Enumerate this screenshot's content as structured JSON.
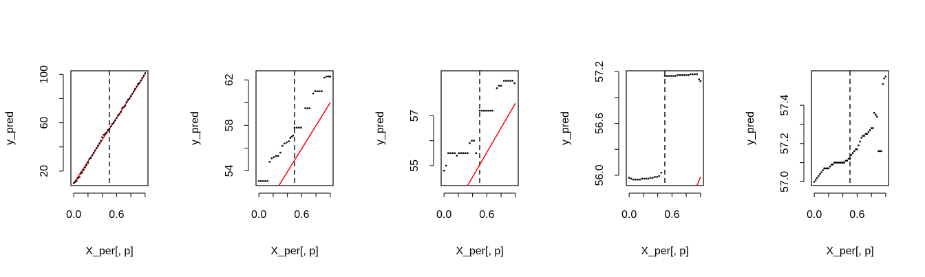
{
  "chart_data": [
    {
      "type": "scatter",
      "xlabel": "X_per[, p]",
      "ylabel": "y_pred",
      "xlim": [
        -0.04,
        1.04
      ],
      "ylim": [
        8,
        103
      ],
      "x_ticks": [
        "0.0",
        "0.6"
      ],
      "x_tick_values": [
        0.0,
        0.6
      ],
      "y_ticks": [
        "20",
        "60",
        "100"
      ],
      "y_tick_values": [
        20,
        60,
        100
      ],
      "vline": 0.5,
      "line": {
        "color": "#ff0000",
        "x": [
          0.0,
          1.0
        ],
        "y": [
          10,
          100
        ]
      },
      "points": [
        [
          0,
          10
        ],
        [
          0.02,
          11
        ],
        [
          0.04,
          12
        ],
        [
          0.06,
          14
        ],
        [
          0.08,
          15
        ],
        [
          0.1,
          18
        ],
        [
          0.12,
          19
        ],
        [
          0.14,
          21
        ],
        [
          0.16,
          23
        ],
        [
          0.18,
          25
        ],
        [
          0.2,
          27
        ],
        [
          0.22,
          30
        ],
        [
          0.24,
          31
        ],
        [
          0.26,
          33
        ],
        [
          0.28,
          35
        ],
        [
          0.3,
          37
        ],
        [
          0.32,
          39
        ],
        [
          0.34,
          41
        ],
        [
          0.36,
          43
        ],
        [
          0.38,
          45
        ],
        [
          0.4,
          48
        ],
        [
          0.42,
          50
        ],
        [
          0.44,
          51
        ],
        [
          0.46,
          52
        ],
        [
          0.48,
          54
        ],
        [
          0.5,
          55
        ],
        [
          0.52,
          57
        ],
        [
          0.54,
          59
        ],
        [
          0.56,
          60
        ],
        [
          0.58,
          62
        ],
        [
          0.6,
          64
        ],
        [
          0.62,
          66
        ],
        [
          0.64,
          67
        ],
        [
          0.66,
          69
        ],
        [
          0.68,
          72
        ],
        [
          0.7,
          73
        ],
        [
          0.72,
          74
        ],
        [
          0.74,
          77
        ],
        [
          0.76,
          79
        ],
        [
          0.78,
          80
        ],
        [
          0.8,
          82
        ],
        [
          0.82,
          84
        ],
        [
          0.84,
          86
        ],
        [
          0.86,
          88
        ],
        [
          0.88,
          90
        ],
        [
          0.9,
          92
        ],
        [
          0.92,
          93
        ],
        [
          0.94,
          95
        ],
        [
          0.96,
          97
        ],
        [
          0.98,
          99
        ],
        [
          1.0,
          101
        ]
      ]
    },
    {
      "type": "scatter",
      "xlabel": "X_per[, p]",
      "ylabel": "y_pred",
      "xlim": [
        -0.04,
        1.04
      ],
      "ylim": [
        52.7,
        62.8
      ],
      "x_ticks": [
        "0.0",
        "0.6"
      ],
      "x_tick_values": [
        0.0,
        0.6
      ],
      "y_ticks": [
        "54",
        "58",
        "62"
      ],
      "y_tick_values": [
        54,
        58,
        62
      ],
      "vline": 0.5,
      "line": {
        "color": "#ff0000",
        "x": [
          0.28,
          1.0
        ],
        "y": [
          52.7,
          60.0
        ]
      },
      "points": [
        [
          0,
          53.1
        ],
        [
          0.03,
          53.1
        ],
        [
          0.06,
          53.1
        ],
        [
          0.09,
          53.1
        ],
        [
          0.12,
          53.1
        ],
        [
          0.15,
          54.8
        ],
        [
          0.18,
          55.1
        ],
        [
          0.21,
          55.2
        ],
        [
          0.24,
          55.3
        ],
        [
          0.27,
          55.3
        ],
        [
          0.3,
          55.6
        ],
        [
          0.33,
          56.2
        ],
        [
          0.36,
          56.4
        ],
        [
          0.39,
          56.5
        ],
        [
          0.42,
          56.6
        ],
        [
          0.44,
          56.9
        ],
        [
          0.46,
          57.0
        ],
        [
          0.48,
          57.1
        ],
        [
          0.5,
          57.8
        ],
        [
          0.53,
          57.8
        ],
        [
          0.56,
          57.8
        ],
        [
          0.59,
          57.8
        ],
        [
          0.65,
          59.5
        ],
        [
          0.68,
          59.5
        ],
        [
          0.71,
          59.5
        ],
        [
          0.76,
          60.8
        ],
        [
          0.79,
          61.0
        ],
        [
          0.82,
          61.0
        ],
        [
          0.85,
          61.0
        ],
        [
          0.88,
          61.0
        ],
        [
          0.92,
          62.2
        ],
        [
          0.95,
          62.3
        ],
        [
          0.98,
          62.3
        ],
        [
          1.0,
          62.3
        ]
      ]
    },
    {
      "type": "scatter",
      "xlabel": "X_per[, p]",
      "ylabel": "y_pred",
      "xlim": [
        -0.04,
        1.04
      ],
      "ylim": [
        54.2,
        58.8
      ],
      "x_ticks": [
        "0.0",
        "0.6"
      ],
      "x_tick_values": [
        0.0,
        0.6
      ],
      "y_ticks": [
        "55",
        "57"
      ],
      "y_tick_values": [
        55,
        57
      ],
      "vline": 0.5,
      "line": {
        "color": "#ff0000",
        "x": [
          0.33,
          1.0
        ],
        "y": [
          54.2,
          57.5
        ]
      },
      "points": [
        [
          0,
          54.8
        ],
        [
          0.03,
          55.0
        ],
        [
          0.06,
          55.5
        ],
        [
          0.09,
          55.5
        ],
        [
          0.12,
          55.5
        ],
        [
          0.15,
          55.5
        ],
        [
          0.18,
          55.4
        ],
        [
          0.21,
          55.5
        ],
        [
          0.24,
          55.5
        ],
        [
          0.27,
          55.5
        ],
        [
          0.3,
          55.5
        ],
        [
          0.33,
          55.5
        ],
        [
          0.36,
          55.9
        ],
        [
          0.39,
          56.0
        ],
        [
          0.42,
          56.0
        ],
        [
          0.45,
          55.5
        ],
        [
          0.5,
          57.2
        ],
        [
          0.53,
          57.2
        ],
        [
          0.56,
          57.2
        ],
        [
          0.59,
          57.2
        ],
        [
          0.62,
          57.2
        ],
        [
          0.65,
          57.2
        ],
        [
          0.68,
          57.2
        ],
        [
          0.74,
          58.1
        ],
        [
          0.77,
          58.2
        ],
        [
          0.8,
          58.2
        ],
        [
          0.84,
          58.4
        ],
        [
          0.87,
          58.4
        ],
        [
          0.9,
          58.4
        ],
        [
          0.93,
          58.4
        ],
        [
          0.96,
          58.4
        ],
        [
          0.99,
          58.3
        ]
      ]
    },
    {
      "type": "scatter",
      "xlabel": "X_per[, p]",
      "ylabel": "y_pred",
      "xlim": [
        -0.04,
        1.04
      ],
      "ylim": [
        55.88,
        57.21
      ],
      "x_ticks": [
        "0.0",
        "0.6"
      ],
      "x_tick_values": [
        0.0,
        0.6
      ],
      "y_ticks": [
        "56.0",
        "56.6",
        "57.2"
      ],
      "y_tick_values": [
        56.0,
        56.6,
        57.2
      ],
      "vline": 0.5,
      "line": {
        "color": "#ff0000",
        "x": [
          0.95,
          1.0
        ],
        "y": [
          55.88,
          55.98
        ]
      },
      "points": [
        [
          0,
          55.97
        ],
        [
          0.03,
          55.96
        ],
        [
          0.06,
          55.95
        ],
        [
          0.09,
          55.95
        ],
        [
          0.12,
          55.95
        ],
        [
          0.15,
          55.95
        ],
        [
          0.18,
          55.96
        ],
        [
          0.21,
          55.96
        ],
        [
          0.24,
          55.96
        ],
        [
          0.27,
          55.96
        ],
        [
          0.3,
          55.97
        ],
        [
          0.33,
          55.97
        ],
        [
          0.36,
          55.98
        ],
        [
          0.39,
          55.98
        ],
        [
          0.42,
          55.99
        ],
        [
          0.45,
          56.03
        ],
        [
          0.5,
          57.15
        ],
        [
          0.53,
          57.15
        ],
        [
          0.56,
          57.15
        ],
        [
          0.59,
          57.15
        ],
        [
          0.62,
          57.15
        ],
        [
          0.65,
          57.15
        ],
        [
          0.68,
          57.16
        ],
        [
          0.71,
          57.16
        ],
        [
          0.74,
          57.16
        ],
        [
          0.77,
          57.16
        ],
        [
          0.8,
          57.16
        ],
        [
          0.83,
          57.16
        ],
        [
          0.86,
          57.17
        ],
        [
          0.89,
          57.17
        ],
        [
          0.92,
          57.17
        ],
        [
          0.95,
          57.17
        ],
        [
          0.98,
          57.11
        ],
        [
          1.0,
          57.09
        ]
      ]
    },
    {
      "type": "scatter",
      "xlabel": "X_per[, p]",
      "ylabel": "y_pred",
      "xlim": [
        -0.04,
        1.04
      ],
      "ylim": [
        56.98,
        57.58
      ],
      "x_ticks": [
        "0.0",
        "0.6"
      ],
      "x_tick_values": [
        0.0,
        0.6
      ],
      "y_ticks": [
        "57.0",
        "57.2",
        "57.4"
      ],
      "y_tick_values": [
        57.0,
        57.2,
        57.4
      ],
      "vline": 0.5,
      "line": null,
      "points": [
        [
          0,
          57.0
        ],
        [
          0.02,
          57.01
        ],
        [
          0.04,
          57.02
        ],
        [
          0.06,
          57.03
        ],
        [
          0.08,
          57.04
        ],
        [
          0.1,
          57.05
        ],
        [
          0.12,
          57.06
        ],
        [
          0.14,
          57.07
        ],
        [
          0.16,
          57.07
        ],
        [
          0.18,
          57.07
        ],
        [
          0.2,
          57.07
        ],
        [
          0.22,
          57.08
        ],
        [
          0.24,
          57.09
        ],
        [
          0.26,
          57.09
        ],
        [
          0.28,
          57.1
        ],
        [
          0.3,
          57.1
        ],
        [
          0.32,
          57.1
        ],
        [
          0.34,
          57.1
        ],
        [
          0.36,
          57.1
        ],
        [
          0.38,
          57.1
        ],
        [
          0.4,
          57.1
        ],
        [
          0.42,
          57.1
        ],
        [
          0.44,
          57.11
        ],
        [
          0.46,
          57.11
        ],
        [
          0.48,
          57.12
        ],
        [
          0.5,
          57.12
        ],
        [
          0.52,
          57.14
        ],
        [
          0.54,
          57.15
        ],
        [
          0.56,
          57.16
        ],
        [
          0.58,
          57.17
        ],
        [
          0.6,
          57.17
        ],
        [
          0.62,
          57.19
        ],
        [
          0.64,
          57.21
        ],
        [
          0.66,
          57.23
        ],
        [
          0.68,
          57.24
        ],
        [
          0.7,
          57.24
        ],
        [
          0.72,
          57.25
        ],
        [
          0.74,
          57.25
        ],
        [
          0.76,
          57.26
        ],
        [
          0.78,
          57.27
        ],
        [
          0.8,
          57.28
        ],
        [
          0.82,
          57.28
        ],
        [
          0.84,
          57.36
        ],
        [
          0.86,
          57.35
        ],
        [
          0.88,
          57.34
        ],
        [
          0.9,
          57.16
        ],
        [
          0.92,
          57.16
        ],
        [
          0.94,
          57.16
        ],
        [
          0.96,
          57.51
        ],
        [
          0.98,
          57.54
        ],
        [
          1.0,
          57.55
        ]
      ]
    }
  ]
}
